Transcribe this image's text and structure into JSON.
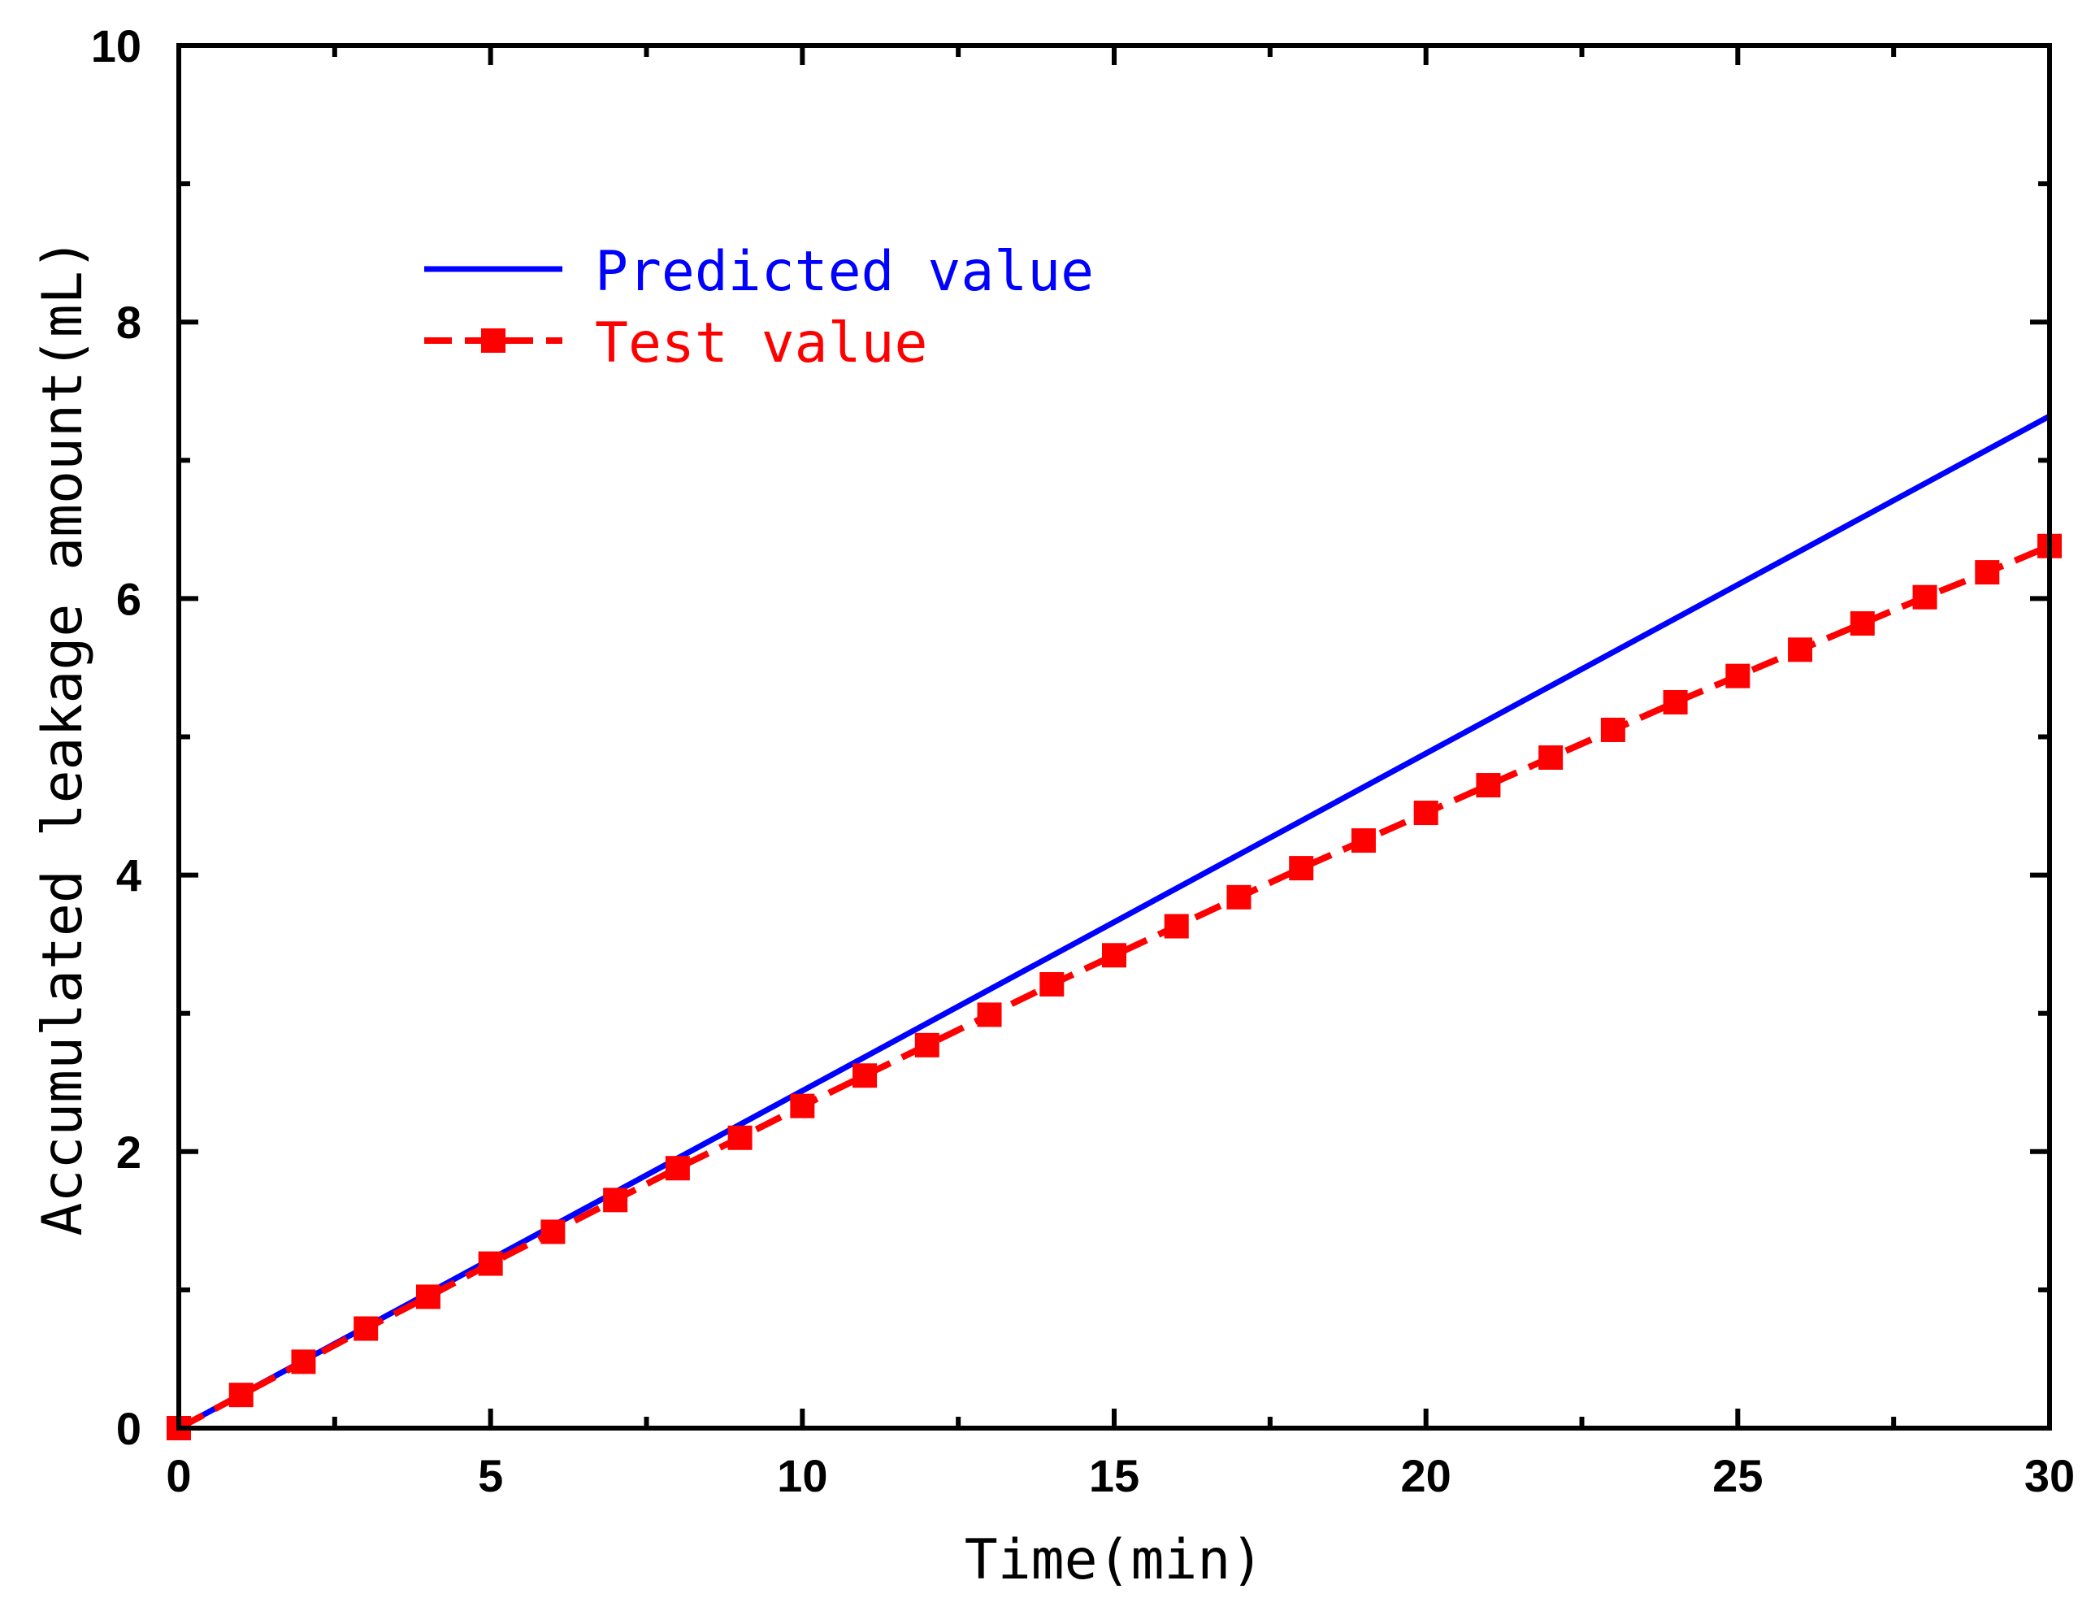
{
  "chart_data": {
    "type": "line",
    "xlabel": "Time(min)",
    "ylabel": "Accumulated leakage amount(mL)",
    "xlim": [
      0,
      30
    ],
    "ylim": [
      0,
      10
    ],
    "x_ticks": [
      "0",
      "5",
      "10",
      "15",
      "20",
      "25",
      "30"
    ],
    "y_ticks": [
      "0",
      "2",
      "4",
      "6",
      "8",
      "10"
    ],
    "x_minor_step": 2.5,
    "y_minor_step": 1,
    "grid": false,
    "legend_position": "top-left",
    "series": [
      {
        "name": "Predicted value",
        "color": "#0000ff",
        "style": "solid",
        "marker": "none",
        "x": [
          0,
          30
        ],
        "y": [
          0,
          7.32
        ]
      },
      {
        "name": "Test value",
        "color": "#ff0000",
        "style": "dashed",
        "marker": "square",
        "x": [
          0,
          1,
          2,
          3,
          4,
          5,
          6,
          7,
          8,
          9,
          10,
          11,
          12,
          13,
          14,
          15,
          16,
          17,
          18,
          19,
          20,
          21,
          22,
          23,
          24,
          25,
          26,
          27,
          28,
          29,
          30
        ],
        "y": [
          0,
          0.24,
          0.48,
          0.72,
          0.95,
          1.19,
          1.42,
          1.65,
          1.88,
          2.1,
          2.33,
          2.55,
          2.77,
          2.99,
          3.21,
          3.42,
          3.63,
          3.84,
          4.05,
          4.25,
          4.45,
          4.65,
          4.85,
          5.05,
          5.25,
          5.44,
          5.63,
          5.82,
          6.01,
          6.19,
          6.38
        ]
      }
    ]
  }
}
